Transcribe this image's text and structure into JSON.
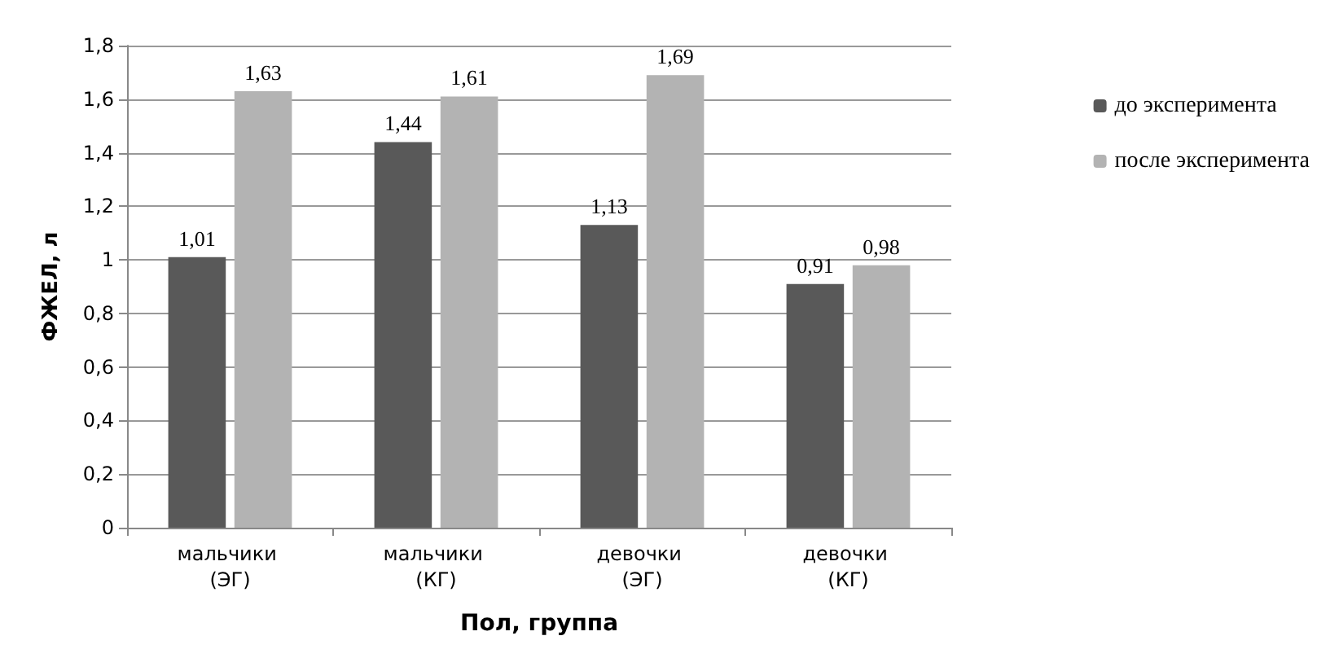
{
  "chart_data": {
    "type": "bar",
    "xlabel": "Пол, группа",
    "ylabel": "ФЖЕЛ, л",
    "categories": [
      "мальчики (ЭГ)",
      "мальчики (КГ)",
      "девочки (ЭГ)",
      "девочки (КГ)"
    ],
    "series": [
      {
        "name": "до эксперимента",
        "color": "#595959",
        "values": [
          1.01,
          1.44,
          1.13,
          0.91
        ],
        "value_labels": [
          "1,01",
          "1,44",
          "1,13",
          "0,91"
        ]
      },
      {
        "name": "после эксперимента",
        "color": "#b3b3b3",
        "values": [
          1.63,
          1.61,
          1.69,
          0.98
        ],
        "value_labels": [
          "1,63",
          "1,61",
          "1,69",
          "0,98"
        ]
      }
    ],
    "ylim": [
      0,
      1.8
    ],
    "yticks": [
      {
        "value": 0,
        "label": "0"
      },
      {
        "value": 0.2,
        "label": "0,2"
      },
      {
        "value": 0.4,
        "label": "0,4"
      },
      {
        "value": 0.6,
        "label": "0,6"
      },
      {
        "value": 0.8,
        "label": "0,8"
      },
      {
        "value": 1,
        "label": "1"
      },
      {
        "value": 1.2,
        "label": "1,2"
      },
      {
        "value": 1.4,
        "label": "1,4"
      },
      {
        "value": 1.6,
        "label": "1,6"
      },
      {
        "value": 1.8,
        "label": "1,8"
      }
    ],
    "grid": "y",
    "legend": "right"
  }
}
